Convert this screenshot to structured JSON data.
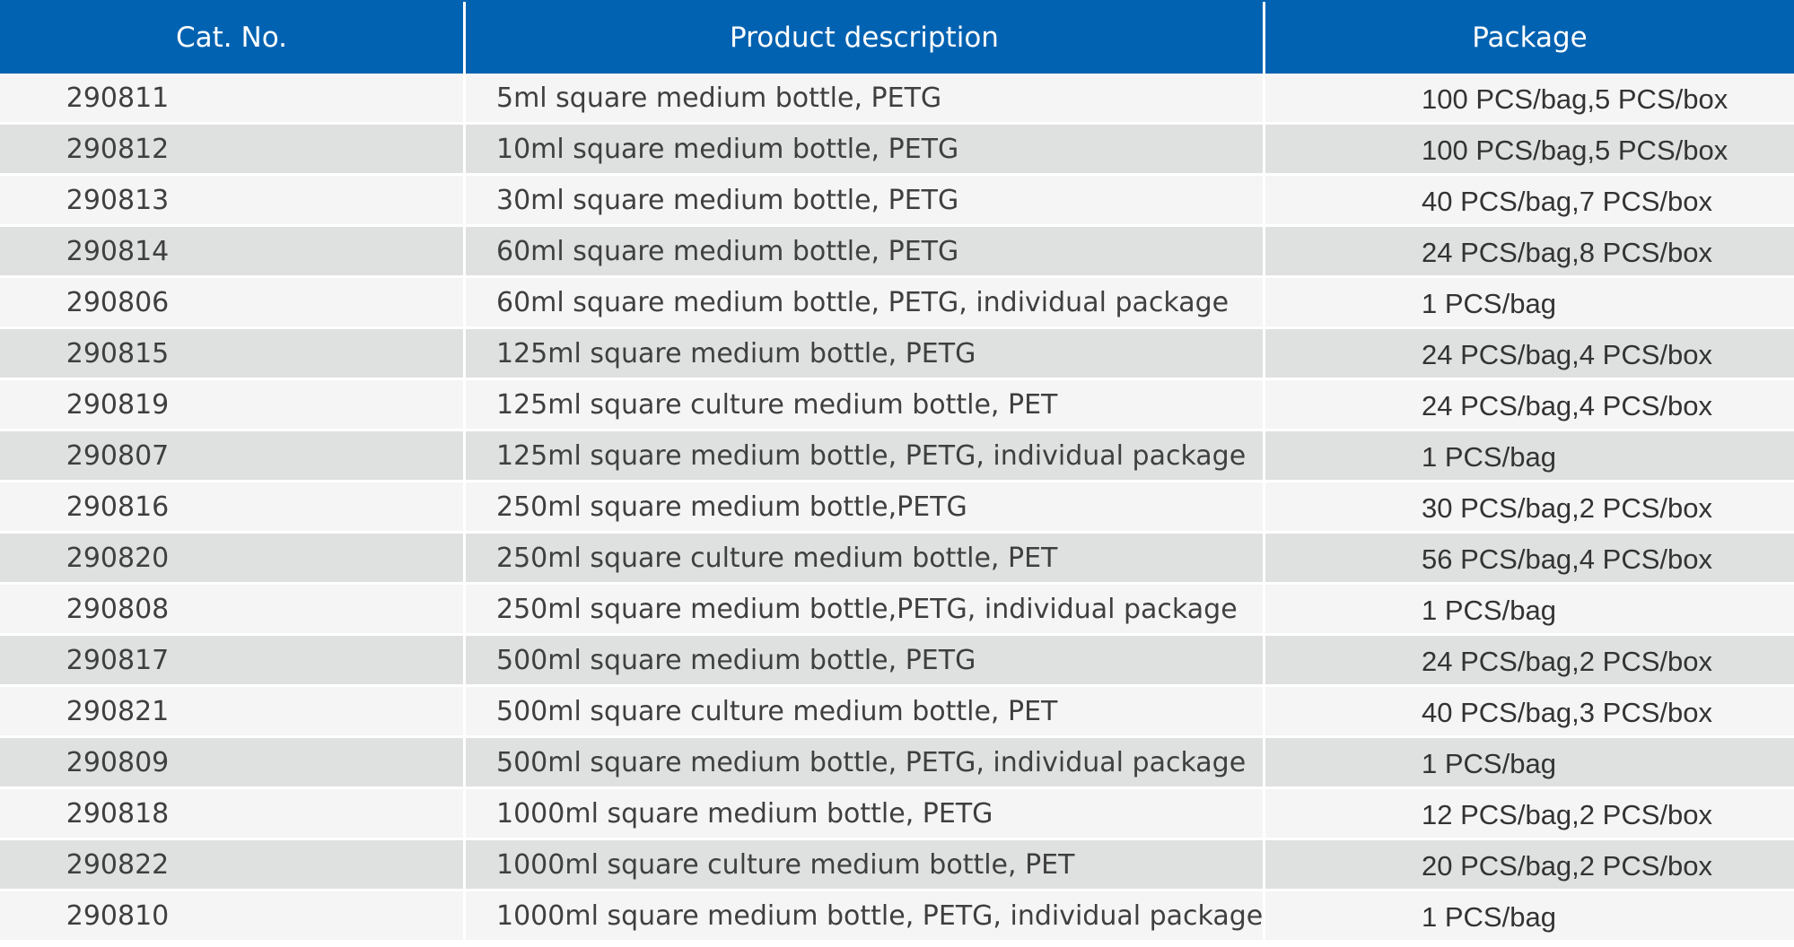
{
  "table": {
    "headers": {
      "cat_no": "Cat. No.",
      "description": "Product description",
      "package": "Package"
    },
    "rows": [
      {
        "cat_no": "290811",
        "description": "5ml square medium bottle, PETG",
        "package": "100 PCS/bag,5 PCS/box"
      },
      {
        "cat_no": "290812",
        "description": "10ml square medium bottle, PETG",
        "package": "100 PCS/bag,5 PCS/box"
      },
      {
        "cat_no": "290813",
        "description": "30ml square medium bottle, PETG",
        "package": "40 PCS/bag,7 PCS/box"
      },
      {
        "cat_no": "290814",
        "description": "60ml square medium bottle, PETG",
        "package": "24 PCS/bag,8 PCS/box"
      },
      {
        "cat_no": "290806",
        "description": "60ml square medium bottle, PETG, individual package",
        "package": "1 PCS/bag"
      },
      {
        "cat_no": "290815",
        "description": "125ml square medium bottle, PETG",
        "package": "24 PCS/bag,4 PCS/box"
      },
      {
        "cat_no": "290819",
        "description": "125ml square culture medium bottle, PET",
        "package": "24 PCS/bag,4 PCS/box"
      },
      {
        "cat_no": "290807",
        "description": "125ml square medium bottle, PETG, individual package",
        "package": "1 PCS/bag"
      },
      {
        "cat_no": "290816",
        "description": "250ml square medium bottle,PETG",
        "package": "30 PCS/bag,2 PCS/box"
      },
      {
        "cat_no": "290820",
        "description": "250ml square culture medium bottle, PET",
        "package": "56 PCS/bag,4 PCS/box"
      },
      {
        "cat_no": "290808",
        "description": "250ml square medium bottle,PETG, individual package",
        "package": "1 PCS/bag"
      },
      {
        "cat_no": "290817",
        "description": "500ml square medium bottle, PETG",
        "package": "24 PCS/bag,2 PCS/box"
      },
      {
        "cat_no": "290821",
        "description": "500ml square culture medium bottle, PET",
        "package": "40 PCS/bag,3 PCS/box"
      },
      {
        "cat_no": "290809",
        "description": "500ml square medium bottle, PETG, individual package",
        "package": "1 PCS/bag"
      },
      {
        "cat_no": "290818",
        "description": "1000ml square medium bottle, PETG",
        "package": "12 PCS/bag,2 PCS/box"
      },
      {
        "cat_no": "290822",
        "description": "1000ml square culture medium bottle, PET",
        "package": "20 PCS/bag,2 PCS/box"
      },
      {
        "cat_no": "290810",
        "description": "1000ml square medium bottle, PETG, individual package",
        "package": "1 PCS/bag"
      }
    ]
  },
  "colors": {
    "header_background": "#0062b1",
    "header_text": "#ffffff",
    "row_light": "#f5f5f5",
    "row_dark": "#dfe0e0",
    "body_text": "#3f3f3f"
  }
}
